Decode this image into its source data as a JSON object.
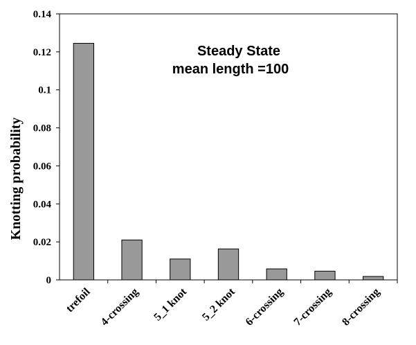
{
  "chart_data": {
    "type": "bar",
    "categories": [
      "trefoil",
      "4-crossing",
      "5_1 knot",
      "5_2 knot",
      "6-crossing",
      "7-crossing",
      "8-crossing"
    ],
    "values": [
      0.1245,
      0.021,
      0.011,
      0.0163,
      0.0058,
      0.0046,
      0.0018
    ],
    "ylabel": "Knotting probability",
    "xlabel": "",
    "ylim": [
      0,
      0.14
    ],
    "yticks": [
      0,
      0.02,
      0.04,
      0.06,
      0.08,
      0.1,
      0.12,
      0.14
    ],
    "ytick_labels": [
      "0",
      "0.02",
      "0.04",
      "0.06",
      "0.08",
      "0.1",
      "0.12",
      "0.14"
    ],
    "annotations": [
      "Steady State",
      "mean length =100"
    ],
    "bar_color": "#999999",
    "grid": false,
    "legend": "none"
  }
}
